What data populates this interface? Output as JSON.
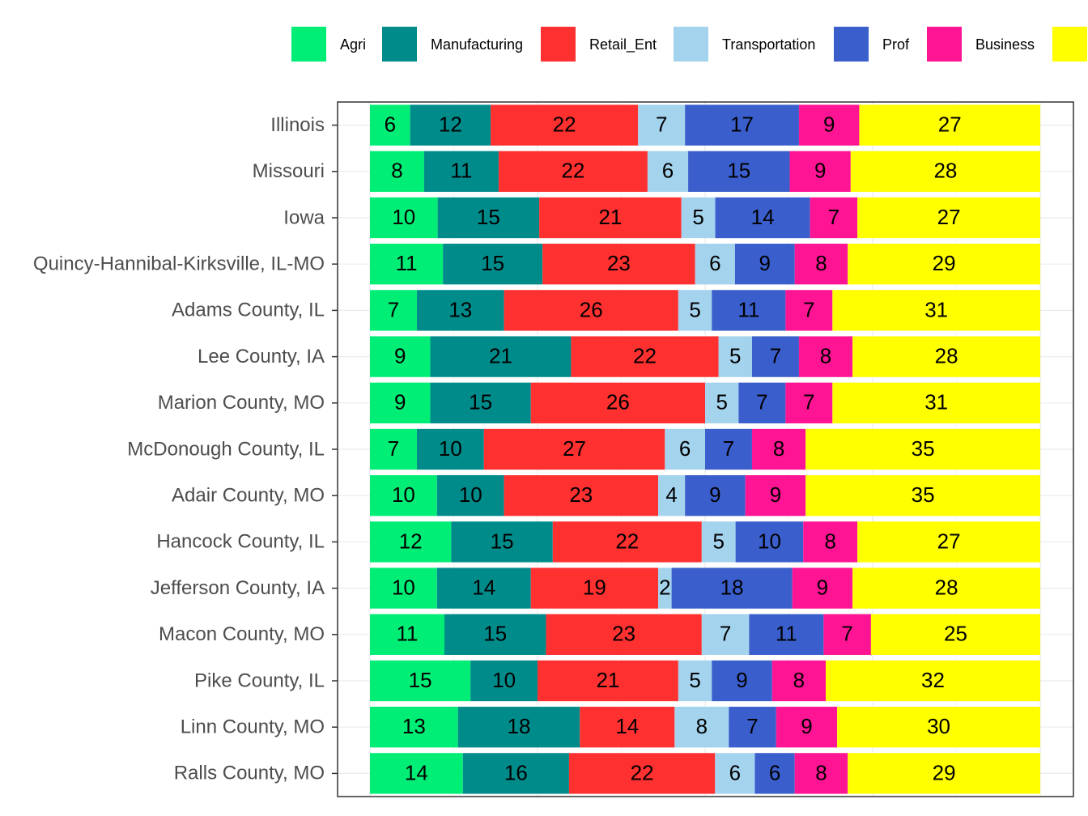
{
  "chart_data": {
    "type": "bar",
    "orientation": "horizontal",
    "stacked": true,
    "percent_stacked": true,
    "xlim": [
      0,
      100
    ],
    "grid": true,
    "legend_position": "top",
    "categories": [
      "Illinois",
      "Missouri",
      "Iowa",
      "Quincy-Hannibal-Kirksville, IL-MO",
      "Adams County, IL",
      "Lee County, IA",
      "Marion County, MO",
      "McDonough County, IL",
      "Adair County, MO",
      "Hancock County, IL",
      "Jefferson County, IA",
      "Macon County, MO",
      "Pike County, IL",
      "Linn County, MO",
      "Ralls County, MO"
    ],
    "series": [
      {
        "name": "Agri",
        "color": "#00EE76",
        "values": [
          6,
          8,
          10,
          11,
          7,
          9,
          9,
          7,
          10,
          12,
          10,
          11,
          15,
          13,
          14
        ]
      },
      {
        "name": "Manufacturing",
        "color": "#008B8B",
        "values": [
          12,
          11,
          15,
          15,
          13,
          21,
          15,
          10,
          10,
          15,
          14,
          15,
          10,
          18,
          16
        ]
      },
      {
        "name": "Retail_Ent",
        "color": "#FF3030",
        "values": [
          22,
          22,
          21,
          23,
          26,
          22,
          26,
          27,
          23,
          22,
          19,
          23,
          21,
          14,
          22
        ]
      },
      {
        "name": "Transportation",
        "color": "#A4D3EE",
        "values": [
          7,
          6,
          5,
          6,
          5,
          5,
          5,
          6,
          4,
          5,
          2,
          7,
          5,
          8,
          6
        ]
      },
      {
        "name": "Prof",
        "color": "#3A5FCD",
        "values": [
          17,
          15,
          14,
          9,
          11,
          7,
          7,
          7,
          9,
          10,
          18,
          11,
          9,
          7,
          6
        ]
      },
      {
        "name": "Business",
        "color": "#FF1493",
        "values": [
          9,
          9,
          7,
          8,
          7,
          8,
          7,
          8,
          9,
          8,
          9,
          7,
          8,
          9,
          8
        ]
      },
      {
        "name": "",
        "color": "#FFFF00",
        "values": [
          27,
          28,
          27,
          29,
          31,
          28,
          31,
          35,
          35,
          27,
          28,
          25,
          32,
          30,
          29
        ]
      }
    ]
  }
}
